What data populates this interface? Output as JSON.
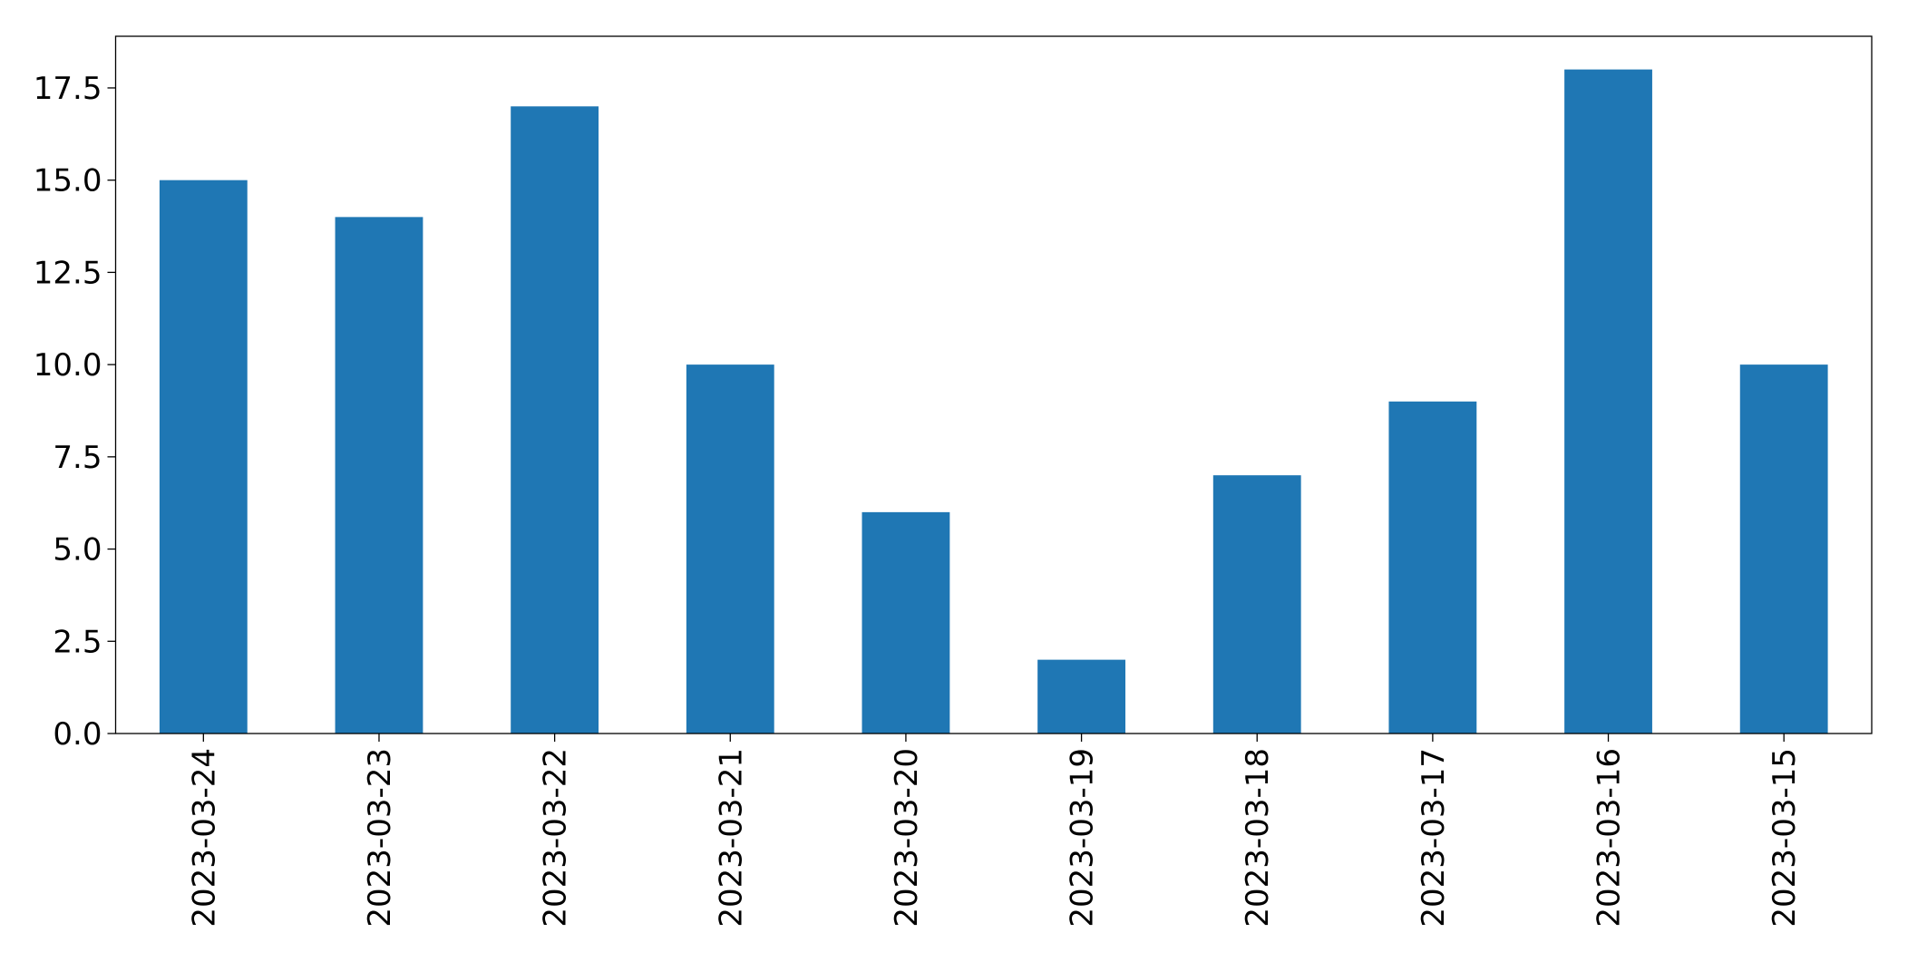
{
  "chart_data": {
    "type": "bar",
    "categories": [
      "2023-03-24",
      "2023-03-23",
      "2023-03-22",
      "2023-03-21",
      "2023-03-20",
      "2023-03-19",
      "2023-03-18",
      "2023-03-17",
      "2023-03-16",
      "2023-03-15"
    ],
    "values": [
      15,
      14,
      17,
      10,
      6,
      2,
      7,
      9,
      18,
      10
    ],
    "color": "#1f77b4",
    "ylim": [
      0,
      18.9
    ],
    "yticks": [
      {
        "value": 0,
        "label": "0.0"
      },
      {
        "value": 2.5,
        "label": "2.5"
      },
      {
        "value": 5,
        "label": "5.0"
      },
      {
        "value": 7.5,
        "label": "7.5"
      },
      {
        "value": 10,
        "label": "10.0"
      },
      {
        "value": 12.5,
        "label": "12.5"
      },
      {
        "value": 15,
        "label": "15.0"
      },
      {
        "value": 17.5,
        "label": "17.5"
      }
    ],
    "grid": false
  }
}
